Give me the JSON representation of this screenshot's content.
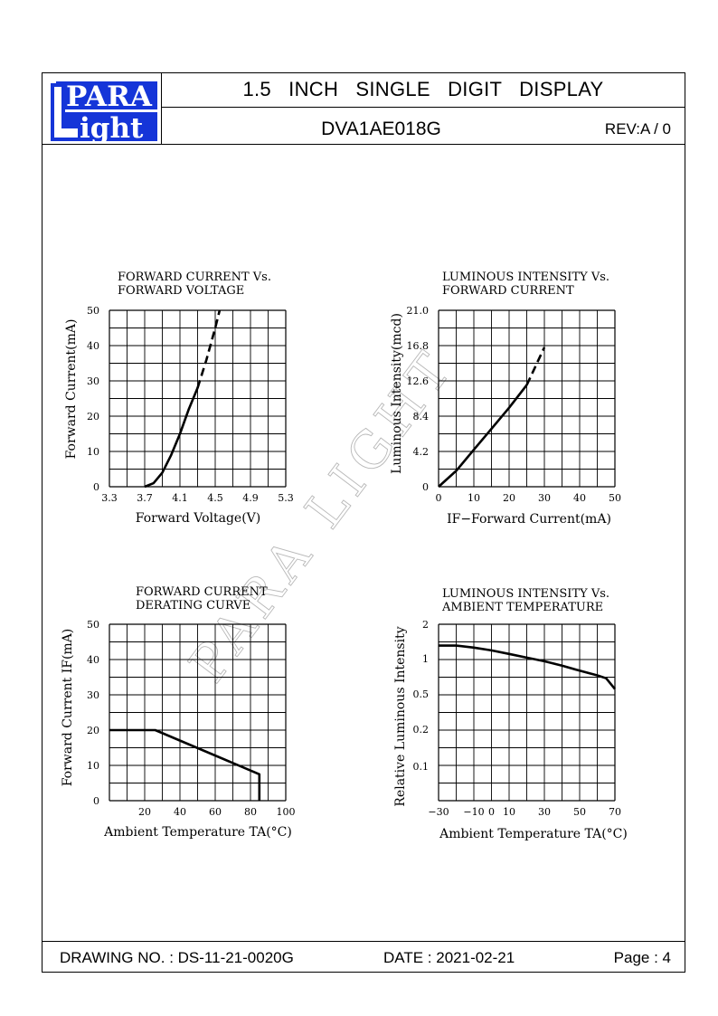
{
  "header": {
    "logo_top": "PARA",
    "logo_bottom": "ight",
    "logo_letter": "L",
    "title": "1.5   INCH   SINGLE   DIGIT   DISPLAY",
    "part_number": "DVA1AE018G",
    "revision": "REV:A / 0"
  },
  "watermark": "PARA LIGHT",
  "footer": {
    "drawing_no": "DRAWING NO. : DS-11-21-0020G",
    "date": "DATE : 2021-02-21",
    "page": "Page : 4"
  },
  "colors": {
    "logo_blue": "#1535d8",
    "line": "#000000",
    "watermark": "#b8b8b8"
  },
  "chart_data": [
    {
      "type": "line",
      "title": [
        "FORWARD  CURRENT  Vs.",
        "FORWARD  VOLTAGE"
      ],
      "xlabel": "Forward  Voltage(V)",
      "ylabel": "Forward  Current(mA)",
      "xlim": [
        3.3,
        5.3
      ],
      "ylim": [
        0,
        50
      ],
      "xticks": [
        3.3,
        3.7,
        4.1,
        4.5,
        4.9,
        5.3
      ],
      "xtick_labels": [
        "3.3",
        "3.7",
        "4.1",
        "4.5",
        "4.9",
        "5.3"
      ],
      "yticks": [
        0,
        10,
        20,
        30,
        40,
        50
      ],
      "ytick_labels": [
        "0",
        "10",
        "20",
        "30",
        "40",
        "50"
      ],
      "grid": {
        "x": 10,
        "y": 10
      },
      "series": [
        {
          "style": "solid",
          "x": [
            3.7,
            3.8,
            3.9,
            4.0,
            4.1,
            4.2,
            4.3
          ],
          "y": [
            0,
            1,
            4,
            9,
            15,
            22,
            28
          ]
        },
        {
          "style": "dashed",
          "x": [
            4.3,
            4.4,
            4.5,
            4.55
          ],
          "y": [
            28,
            36,
            45,
            50
          ]
        }
      ]
    },
    {
      "type": "line",
      "title": [
        "LUMINOUS  INTENSITY  Vs.",
        "FORWARD  CURRENT"
      ],
      "xlabel": "IF−Forward  Current(mA)",
      "ylabel": "Luminous  Intensity(mcd)",
      "xlim": [
        0,
        50
      ],
      "ylim": [
        0,
        21
      ],
      "xticks": [
        0,
        10,
        20,
        30,
        40,
        50
      ],
      "xtick_labels": [
        "0",
        "10",
        "20",
        "30",
        "40",
        "50"
      ],
      "yticks": [
        0,
        4.2,
        8.4,
        12.6,
        16.8,
        21.0
      ],
      "ytick_labels": [
        "0",
        "4.2",
        "8.4",
        "12.6",
        "16.8",
        "21.0"
      ],
      "grid": {
        "x": 10,
        "y": 10
      },
      "series": [
        {
          "style": "solid",
          "x": [
            0,
            5,
            10,
            15,
            20,
            25
          ],
          "y": [
            0,
            1.9,
            4.4,
            6.9,
            9.4,
            12.1
          ]
        },
        {
          "style": "dashed",
          "x": [
            25,
            30
          ],
          "y": [
            12.1,
            16.6
          ]
        }
      ]
    },
    {
      "type": "line",
      "title": [
        "FORWARD  CURRENT",
        "DERATING  CURVE"
      ],
      "xlabel": "Ambient  Temperature  TA(°C)",
      "ylabel": "Forward  Current  IF(mA)",
      "xlim": [
        0,
        100
      ],
      "ylim": [
        0,
        50
      ],
      "xticks": [
        20,
        40,
        60,
        80,
        100
      ],
      "xtick_labels": [
        "20",
        "40",
        "60",
        "80",
        "100"
      ],
      "yticks": [
        0,
        10,
        20,
        30,
        40,
        50
      ],
      "ytick_labels": [
        "0",
        "10",
        "20",
        "30",
        "40",
        "50"
      ],
      "grid": {
        "x": 10,
        "y": 10
      },
      "series": [
        {
          "style": "solid",
          "x": [
            0,
            26,
            85,
            85
          ],
          "y": [
            20,
            20,
            7.5,
            0
          ]
        }
      ]
    },
    {
      "type": "line",
      "title": [
        "LUMINOUS  INTENSITY  Vs.",
        "AMBIENT  TEMPERATURE"
      ],
      "xlabel": "Ambient  Temperature  TA(°C)",
      "ylabel": "Relative  Luminous  Intensity",
      "xlim": [
        -30,
        70
      ],
      "ylim_note": "nonlinear axis",
      "xticks": [
        -30,
        -10,
        0,
        10,
        30,
        50,
        70
      ],
      "xtick_labels": [
        "−30",
        "−10",
        "0",
        "10",
        "30",
        "50",
        "70"
      ],
      "yticks": [
        0.1,
        0.2,
        0.5,
        1,
        2
      ],
      "ytick_labels": [
        "0.1",
        "0.2",
        "0.5",
        "1",
        "2"
      ],
      "grid": {
        "x": 10,
        "y": 10
      },
      "series": [
        {
          "style": "solid",
          "x": [
            -30,
            -20,
            -10,
            0,
            10,
            20,
            30,
            40,
            50,
            60,
            65,
            70
          ],
          "y": [
            1.3,
            1.3,
            1.25,
            1.18,
            1.1,
            1.02,
            0.95,
            0.87,
            0.79,
            0.72,
            0.68,
            0.55
          ]
        }
      ]
    }
  ]
}
